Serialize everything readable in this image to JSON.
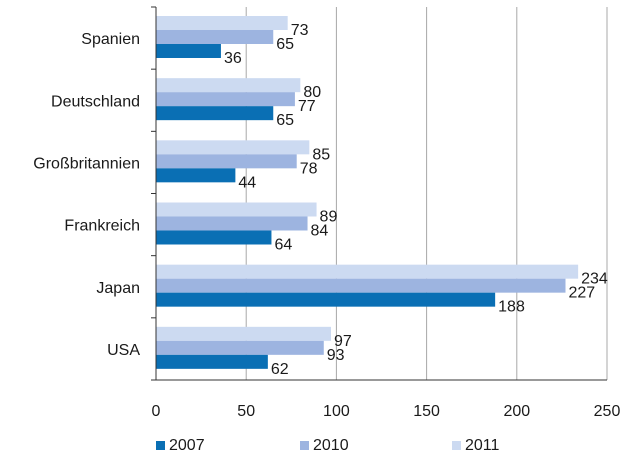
{
  "chart_data": {
    "type": "bar",
    "orientation": "horizontal",
    "categories": [
      "Spanien",
      "Deutschland",
      "Großbritannien",
      "Frankreich",
      "Japan",
      "USA"
    ],
    "series": [
      {
        "name": "2007",
        "color": "#0a6fb4",
        "values": [
          36,
          65,
          44,
          64,
          188,
          62
        ]
      },
      {
        "name": "2010",
        "color": "#9db4e0",
        "values": [
          65,
          77,
          78,
          84,
          227,
          93
        ]
      },
      {
        "name": "2011",
        "color": "#ccdaf1",
        "values": [
          73,
          80,
          85,
          89,
          234,
          97
        ]
      }
    ],
    "x_ticks": [
      "0",
      "50",
      "100",
      "150",
      "200",
      "250"
    ],
    "xlim": [
      0,
      250
    ],
    "grid": "vertical",
    "legend": "bottom",
    "title": "",
    "xlabel": "",
    "ylabel": ""
  }
}
